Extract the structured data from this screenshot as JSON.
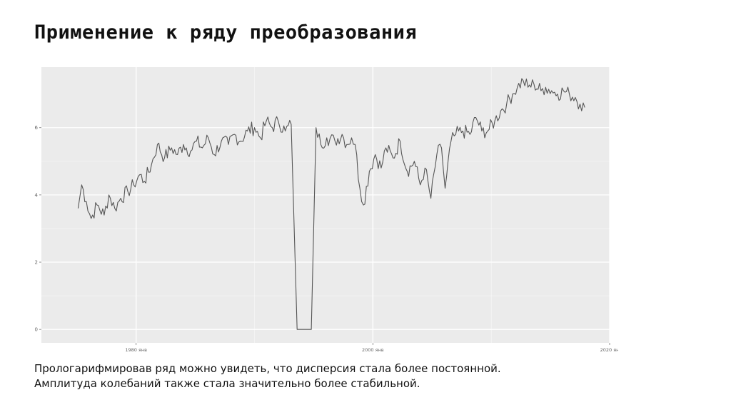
{
  "slide": {
    "title": "Применение к ряду преобразования",
    "caption_line1": "Прологарифмировав ряд можно увидеть, что дисперсия стала более постоянной.",
    "caption_line2": "Амплитуда колебаний также стала значительно более стабильной."
  },
  "chart_data": {
    "type": "line",
    "title": "",
    "xlabel": "",
    "ylabel": "",
    "x_range": [
      1972,
      2020
    ],
    "ylim": [
      -0.4,
      7.8
    ],
    "x_ticks": [
      {
        "value": 1980,
        "label": "1980 янв"
      },
      {
        "value": 2000,
        "label": "2000 янв"
      },
      {
        "value": 2020,
        "label": "2020 ян"
      }
    ],
    "y_ticks": [
      {
        "value": 0,
        "label": "0"
      },
      {
        "value": 2,
        "label": "2"
      },
      {
        "value": 4,
        "label": "4"
      },
      {
        "value": 6,
        "label": "6"
      }
    ],
    "grid": true,
    "background_color": "#ebebeb",
    "grid_color": "#ffffff",
    "line_color": "#555555",
    "series": [
      {
        "x": [
          1975.1,
          1975.4,
          1975.8,
          1976.2,
          1976.7,
          1977.3,
          1977.7,
          1978.2,
          1978.7,
          1979.3,
          1979.8,
          1980.3,
          1980.7,
          1981.3,
          1981.8,
          1982.4,
          1983,
          1983.5,
          1984,
          1984.6,
          1985.1,
          1985.6,
          1986.1,
          1986.6,
          1987.2,
          1987.8,
          1988.3,
          1988.8,
          1989.4,
          1990,
          1990.5,
          1991,
          1991.5,
          1992,
          1992.6,
          1993.1,
          1993.6,
          1994.2,
          1994.8,
          1995.2,
          1995.6,
          1996.1,
          1996.8,
          1997.4,
          1997.8,
          1998.2,
          1998.5,
          1998.9,
          1999.2,
          1999.7,
          2000.2,
          2000.7,
          2001.1,
          2001.7,
          2002.3,
          2002.9,
          2003.5,
          2004,
          2004.4,
          2004.9,
          2005.4,
          2005.8,
          2006.1,
          2006.6,
          2007,
          2007.6,
          2008.2,
          2008.7,
          2009.2,
          2009.7,
          2010.3,
          2010.8,
          2011.3,
          2011.8,
          2012.2,
          2012.7,
          2013.1,
          2013.6,
          2014.2,
          2014.6,
          2015.1,
          2015.6,
          2016.1,
          2016.6,
          2017.1,
          2017.5,
          2017.9
        ],
        "values": [
          3.6,
          4.3,
          3.8,
          3.3,
          3.7,
          3.4,
          4.0,
          3.6,
          3.9,
          4.1,
          4.3,
          4.6,
          4.4,
          4.9,
          5.5,
          5.1,
          5.4,
          5.2,
          5.5,
          5.3,
          5.6,
          5.4,
          5.7,
          5.2,
          5.6,
          5.5,
          5.8,
          5.6,
          5.9,
          6.0,
          5.7,
          6.2,
          6.0,
          6.2,
          5.9,
          6.1,
          0.0,
          0.0,
          0.0,
          6.0,
          5.5,
          5.7,
          5.6,
          5.8,
          5.5,
          5.7,
          5.5,
          4.2,
          3.7,
          4.7,
          5.2,
          4.8,
          5.4,
          5.1,
          5.6,
          4.7,
          5.0,
          4.3,
          4.8,
          3.9,
          5.2,
          5.4,
          4.2,
          5.6,
          5.8,
          5.9,
          5.8,
          6.3,
          5.9,
          5.9,
          6.2,
          6.5,
          6.7,
          7.0,
          7.2,
          7.4,
          7.2,
          7.3,
          7.1,
          7.2,
          7.1,
          7.0,
          7.1,
          7.0,
          6.9,
          6.7,
          6.6
        ]
      }
    ]
  }
}
